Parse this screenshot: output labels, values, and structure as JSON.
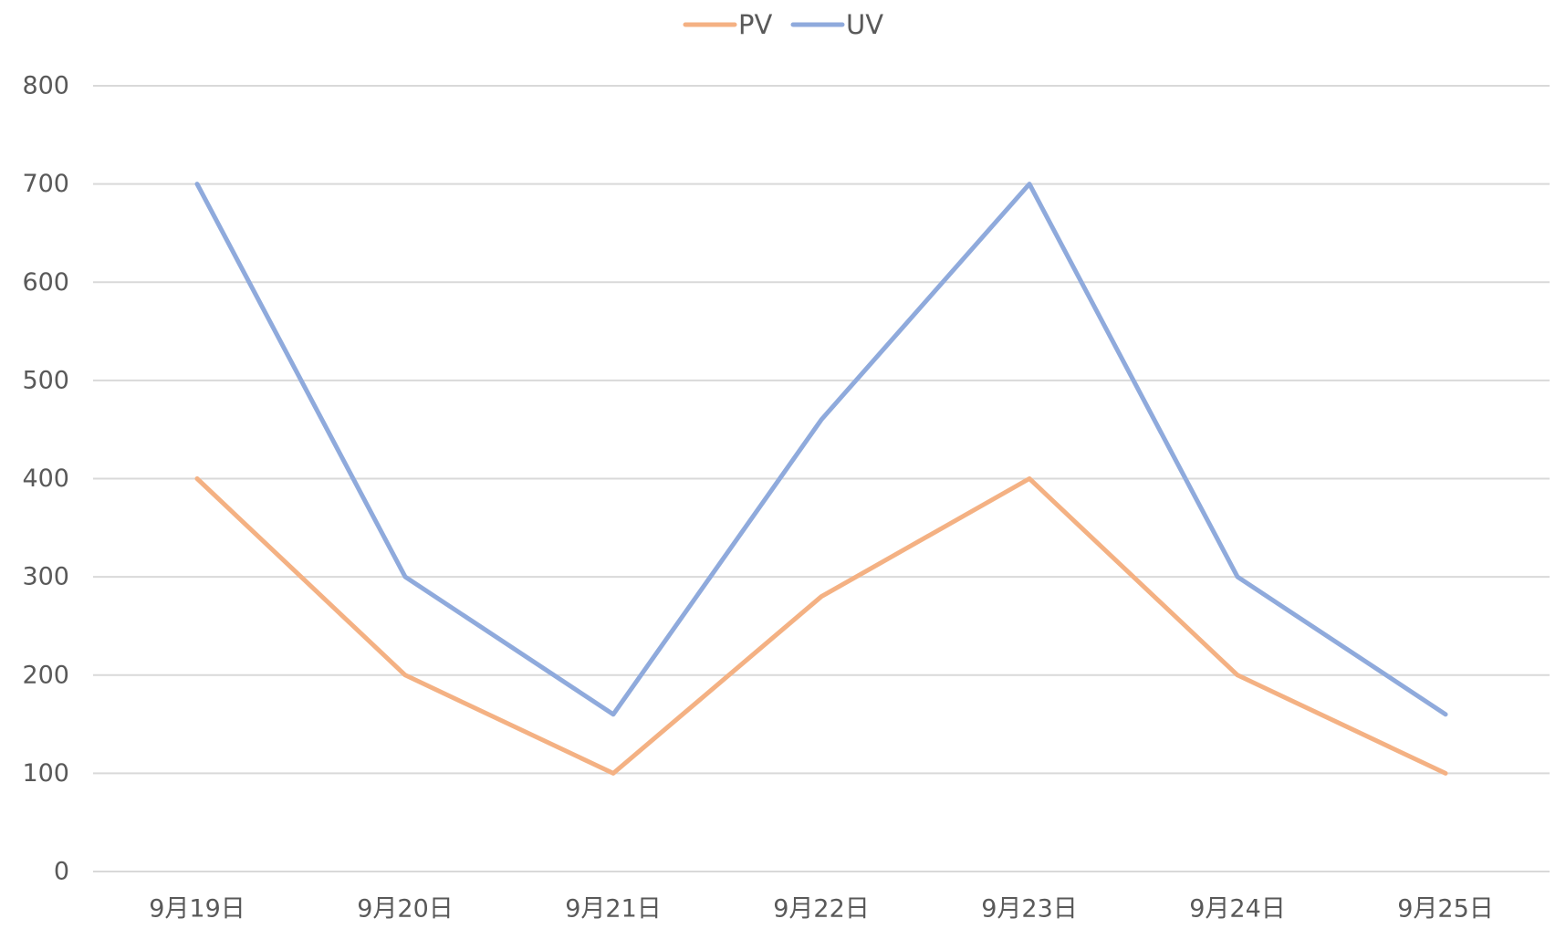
{
  "chart_data": {
    "type": "line",
    "title": "",
    "xlabel": "",
    "ylabel": "",
    "categories": [
      "9月19日",
      "9月20日",
      "9月21日",
      "9月22日",
      "9月23日",
      "9月24日",
      "9月25日"
    ],
    "series": [
      {
        "name": "PV",
        "color": "#f4b183",
        "values": [
          400,
          200,
          100,
          280,
          400,
          200,
          100
        ]
      },
      {
        "name": "UV",
        "color": "#8faadc",
        "values": [
          700,
          300,
          160,
          460,
          700,
          300,
          160
        ]
      }
    ],
    "ylim": [
      0,
      800
    ],
    "yticks": [
      "0",
      "100",
      "200",
      "300",
      "400",
      "500",
      "600",
      "700",
      "800"
    ],
    "grid": true,
    "legend_position": "top-center",
    "gridline_color": "#d9d9d9",
    "text_color": "#595959"
  }
}
